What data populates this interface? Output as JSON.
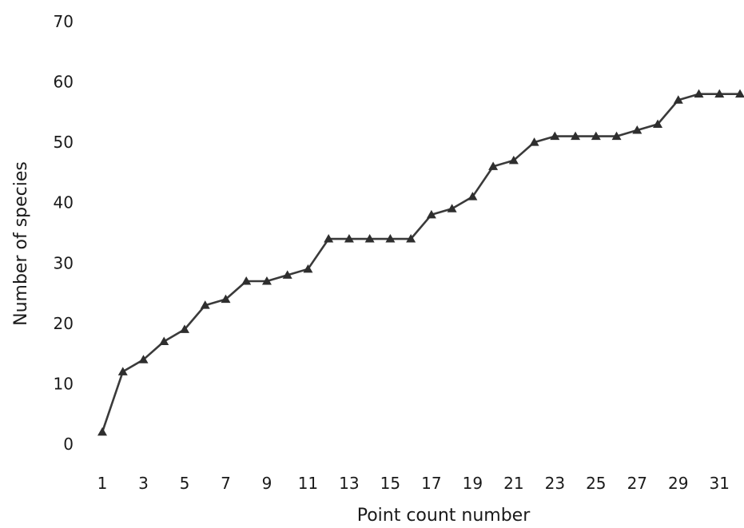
{
  "chart_data": {
    "type": "line",
    "title": "",
    "xlabel": "Point count number",
    "ylabel": "Number of species",
    "x": [
      1,
      2,
      3,
      4,
      5,
      6,
      7,
      8,
      9,
      10,
      11,
      12,
      13,
      14,
      15,
      16,
      17,
      18,
      19,
      20,
      21,
      22,
      23,
      24,
      25,
      26,
      27,
      28,
      29,
      30,
      31,
      32
    ],
    "x_tick_labels": [
      "1",
      "3",
      "5",
      "7",
      "9",
      "11",
      "13",
      "15",
      "17",
      "19",
      "21",
      "23",
      "25",
      "27",
      "29",
      "31"
    ],
    "y_tick_labels": [
      "0",
      "10",
      "20",
      "30",
      "40",
      "50",
      "60",
      "70"
    ],
    "ylim": [
      0,
      70
    ],
    "xlim": [
      1,
      32
    ],
    "grid": false,
    "legend": "none",
    "series": [
      {
        "values": [
          2,
          12,
          14,
          17,
          19,
          23,
          24,
          27,
          27,
          28,
          29,
          34,
          34,
          34,
          34,
          34,
          38,
          39,
          41,
          46,
          47,
          50,
          51,
          51,
          51,
          51,
          52,
          53,
          57,
          58,
          58,
          58
        ],
        "marker": "triangle",
        "color": "#3a3a3a"
      }
    ]
  }
}
